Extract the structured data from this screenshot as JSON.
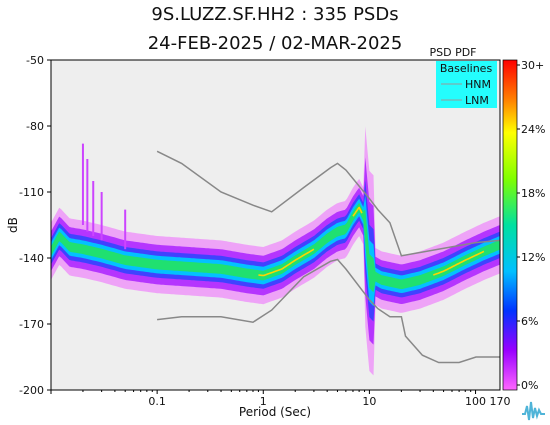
{
  "header": {
    "title_line1": "9S.LUZZ.SF.HH2 : 335 PSDs",
    "title_line2": "24-FEB-2025 / 02-MAR-2025"
  },
  "chart_data": {
    "type": "heatmap",
    "title": "9S.LUZZ.SF.HH2 : 335 PSDs",
    "subtitle": "24-FEB-2025 / 02-MAR-2025",
    "xlabel": "Period (Sec)",
    "ylabel": "dB",
    "x_scale": "log",
    "xlim": [
      0.01,
      170
    ],
    "ylim": [
      -200,
      -50
    ],
    "x_ticks": [
      {
        "value": 0.1,
        "label": "0.1"
      },
      {
        "value": 1,
        "label": "1"
      },
      {
        "value": 10,
        "label": "10"
      },
      {
        "value": 100,
        "label": "100"
      },
      {
        "value": 170,
        "label": "170"
      }
    ],
    "y_ticks": [
      -50,
      -80,
      -110,
      -140,
      -170,
      -200
    ],
    "legend": {
      "title": "Baselines",
      "placement": "top-right",
      "entries": [
        {
          "name": "HNM",
          "color": "#999999"
        },
        {
          "name": "LNM",
          "color": "#999999"
        }
      ]
    },
    "colorbar": {
      "title": "PSD PDF",
      "tick_labels": [
        "30+",
        "24%",
        "18%",
        "12%",
        "6%",
        "0%"
      ]
    },
    "series": [
      {
        "name": "HNM",
        "x": [
          0.1,
          0.17,
          0.4,
          0.8,
          1.2,
          2.4,
          4.3,
          5,
          6,
          10,
          12,
          15.6,
          20,
          100,
          170
        ],
        "y": [
          -91.5,
          -97,
          -110,
          -116,
          -119,
          -108,
          -99,
          -97,
          -100,
          -113,
          -118,
          -124,
          -139,
          -133,
          -132
        ]
      },
      {
        "name": "LNM",
        "x": [
          0.1,
          0.17,
          0.4,
          0.8,
          1.2,
          2.4,
          4.3,
          5,
          6,
          10,
          12,
          15.6,
          20,
          21.9,
          31.6,
          45,
          70,
          101,
          170
        ],
        "y": [
          -168,
          -166.7,
          -166.7,
          -169.2,
          -163.7,
          -148.6,
          -141.5,
          -140.7,
          -145,
          -159,
          -163,
          -166.7,
          -166.7,
          -175.5,
          -184.2,
          -187.5,
          -187.5,
          -185,
          -185
        ]
      },
      {
        "name": "PDF mode",
        "x": [
          0.01,
          0.012,
          0.015,
          0.02,
          0.03,
          0.05,
          0.1,
          0.2,
          0.4,
          0.7,
          1,
          1.5,
          2,
          3,
          4,
          5,
          6,
          7,
          8,
          9,
          10,
          11,
          13,
          20,
          30,
          50,
          80,
          120,
          170
        ],
        "y": [
          -137,
          -130,
          -135,
          -136,
          -138,
          -141,
          -143,
          -144,
          -145,
          -147,
          -148,
          -145,
          -141,
          -136,
          -131,
          -128,
          -127,
          -121,
          -117,
          -122,
          -146,
          -148,
          -150,
          -152,
          -150,
          -146,
          -141,
          -137,
          -134
        ]
      }
    ]
  }
}
